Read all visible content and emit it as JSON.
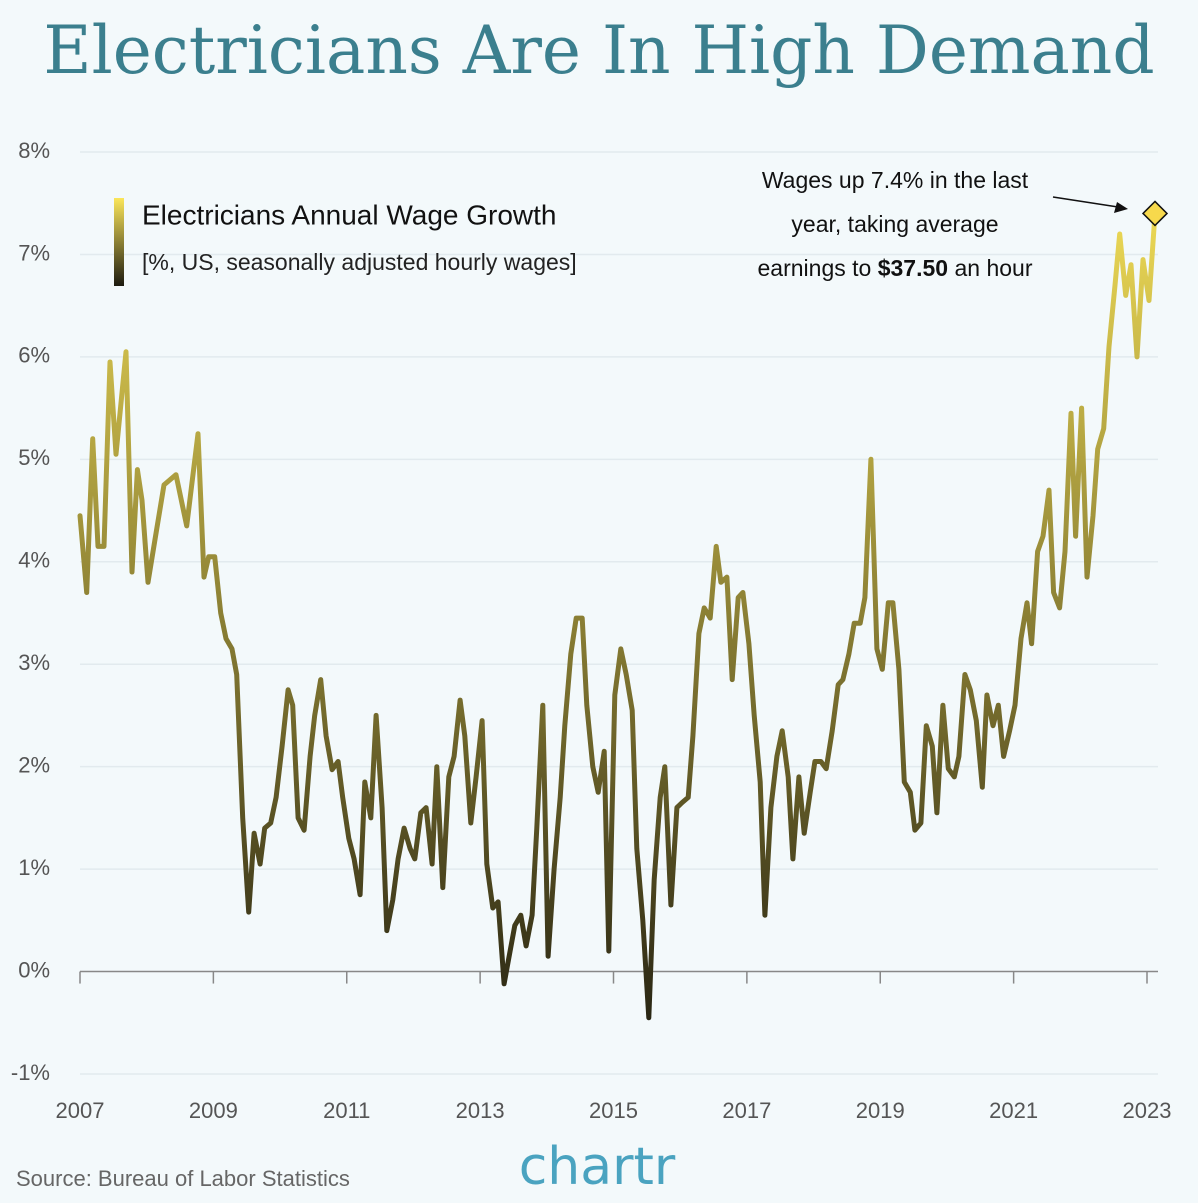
{
  "chart_data": {
    "type": "line",
    "title": "Electricians Are In High Demand",
    "source": "Source: Bureau of Labor Statistics",
    "brand": "chartr",
    "legend_note": "[%, US, seasonally adjusted hourly wages]",
    "annotation": [
      "Wages up 7.4% in the last",
      "year, taking average",
      [
        "earnings to ",
        "$37.50",
        " an hour"
      ]
    ],
    "xlim": [
      2007,
      2023
    ],
    "xticks": [
      2007,
      2009,
      2011,
      2013,
      2015,
      2017,
      2019,
      2021,
      2023
    ],
    "ylim": [
      -1,
      8
    ],
    "yticks": [
      {
        "value": -1,
        "label": "-1%"
      },
      {
        "value": 0,
        "label": "0%"
      },
      {
        "value": 1,
        "label": "1%"
      },
      {
        "value": 2,
        "label": "2%"
      },
      {
        "value": 3,
        "label": "3%"
      },
      {
        "value": 4,
        "label": "4%"
      },
      {
        "value": 5,
        "label": "5%"
      },
      {
        "value": 6,
        "label": "6%"
      },
      {
        "value": 7,
        "label": "7%"
      },
      {
        "value": 8,
        "label": "8%"
      }
    ],
    "grid": true,
    "x": [
      2007.0,
      2007.1,
      2007.19,
      2007.27,
      2007.36,
      2007.45,
      2007.54,
      2007.69,
      2007.78,
      2007.86,
      2007.93,
      2008.02,
      2008.12,
      2008.26,
      2008.44,
      2008.6,
      2008.77,
      2008.86,
      2008.93,
      2009.02,
      2009.11,
      2009.19,
      2009.28,
      2009.35,
      2009.44,
      2009.53,
      2009.61,
      2009.7,
      2009.77,
      2009.86,
      2009.94,
      2010.03,
      2010.12,
      2010.19,
      2010.27,
      2010.36,
      2010.45,
      2010.52,
      2010.61,
      2010.69,
      2010.78,
      2010.87,
      2010.94,
      2011.03,
      2011.11,
      2011.2,
      2011.27,
      2011.36,
      2011.44,
      2011.53,
      2011.6,
      2011.69,
      2011.77,
      2011.86,
      2011.95,
      2012.02,
      2012.11,
      2012.19,
      2012.28,
      2012.35,
      2012.44,
      2012.53,
      2012.61,
      2012.7,
      2012.77,
      2012.86,
      2012.94,
      2013.03,
      2013.1,
      2013.19,
      2013.27,
      2013.36,
      2013.45,
      2013.52,
      2013.61,
      2013.69,
      2013.78,
      2013.85,
      2013.94,
      2014.02,
      2014.11,
      2014.2,
      2014.27,
      2014.36,
      2014.44,
      2014.53,
      2014.6,
      2014.69,
      2014.77,
      2014.86,
      2014.93,
      2015.02,
      2015.11,
      2015.19,
      2015.28,
      2015.35,
      2015.44,
      2015.53,
      2015.61,
      2015.7,
      2015.77,
      2015.86,
      2015.95,
      2016.03,
      2016.12,
      2016.19,
      2016.28,
      2016.36,
      2016.45,
      2016.54,
      2016.61,
      2016.7,
      2016.78,
      2016.87,
      2016.94,
      2017.03,
      2017.11,
      2017.2,
      2017.27,
      2017.36,
      2017.45,
      2017.53,
      2017.62,
      2017.69,
      2017.78,
      2017.86,
      2017.95,
      2018.02,
      2018.11,
      2018.19,
      2018.28,
      2018.37,
      2018.44,
      2018.53,
      2018.61,
      2018.7,
      2018.77,
      2018.86,
      2018.95,
      2019.03,
      2019.12,
      2019.19,
      2019.28,
      2019.36,
      2019.45,
      2019.52,
      2019.61,
      2019.69,
      2019.78,
      2019.85,
      2019.94,
      2020.02,
      2020.11,
      2020.18,
      2020.27,
      2020.35,
      2020.44,
      2020.53,
      2020.6,
      2020.69,
      2020.77,
      2020.85,
      2020.94,
      2021.02,
      2021.11,
      2021.2,
      2021.27,
      2021.36,
      2021.44,
      2021.53,
      2021.6,
      2021.69,
      2021.77,
      2021.86,
      2021.93,
      2022.02,
      2022.1,
      2022.19,
      2022.26,
      2022.35,
      2022.43,
      2022.52,
      2022.59,
      2022.68,
      2022.76,
      2022.85,
      2022.94,
      2023.03,
      2023.12
    ],
    "series": [
      {
        "name": "Electricians Annual Wage Growth",
        "color_scale": [
          "#1c1a0f",
          "#fbe65a"
        ],
        "values": [
          4.45,
          3.7,
          5.2,
          4.15,
          4.15,
          5.95,
          5.05,
          6.05,
          3.9,
          4.9,
          4.6,
          3.8,
          4.2,
          4.75,
          4.85,
          4.35,
          5.25,
          3.85,
          4.05,
          4.05,
          3.5,
          3.25,
          3.15,
          2.9,
          1.5,
          0.58,
          1.35,
          1.05,
          1.4,
          1.45,
          1.7,
          2.2,
          2.75,
          2.6,
          1.5,
          1.38,
          2.1,
          2.5,
          2.85,
          2.3,
          1.97,
          2.05,
          1.7,
          1.3,
          1.1,
          0.75,
          1.85,
          1.5,
          2.5,
          1.6,
          0.4,
          0.7,
          1.1,
          1.4,
          1.2,
          1.1,
          1.55,
          1.6,
          1.05,
          2.0,
          0.82,
          1.9,
          2.1,
          2.65,
          2.3,
          1.45,
          1.9,
          2.45,
          1.05,
          0.62,
          0.68,
          -0.12,
          0.2,
          0.45,
          0.55,
          0.25,
          0.55,
          1.4,
          2.6,
          0.15,
          1.0,
          1.7,
          2.4,
          3.1,
          3.45,
          3.45,
          2.6,
          2.0,
          1.75,
          2.15,
          0.2,
          2.7,
          3.15,
          2.9,
          2.55,
          1.2,
          0.5,
          -0.45,
          0.9,
          1.7,
          2.0,
          0.65,
          1.6,
          1.65,
          1.7,
          2.3,
          3.3,
          3.55,
          3.45,
          4.15,
          3.8,
          3.85,
          2.85,
          3.65,
          3.7,
          3.2,
          2.5,
          1.85,
          0.55,
          1.6,
          2.1,
          2.35,
          1.9,
          1.1,
          1.9,
          1.35,
          1.75,
          2.05,
          2.05,
          1.98,
          2.35,
          2.8,
          2.85,
          3.1,
          3.4,
          3.4,
          3.65,
          5.0,
          3.15,
          2.95,
          3.6,
          3.6,
          2.95,
          1.85,
          1.75,
          1.38,
          1.45,
          2.4,
          2.2,
          1.55,
          2.6,
          1.98,
          1.9,
          2.1,
          2.9,
          2.75,
          2.45,
          1.8,
          2.7,
          2.4,
          2.6,
          2.1,
          2.35,
          2.6,
          3.25,
          3.6,
          3.2,
          4.1,
          4.25,
          4.7,
          3.7,
          3.55,
          4.1,
          5.45,
          4.25,
          5.5,
          3.85,
          4.45,
          5.1,
          5.3,
          6.1,
          6.7,
          7.2,
          6.6,
          6.9,
          6.0,
          6.95,
          6.55,
          7.4
        ]
      }
    ]
  }
}
